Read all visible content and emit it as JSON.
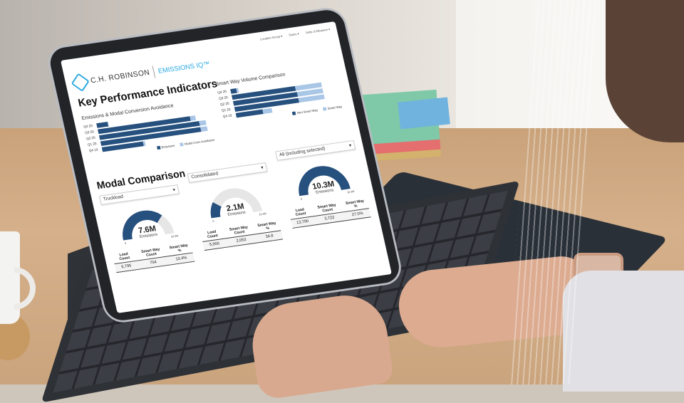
{
  "topnav": [
    "Location Group ▾",
    "Dates ▾",
    "Units of Measure ▾"
  ],
  "brand": {
    "company": "C.H. ROBINSON",
    "product": "EMISSIONS IQ™"
  },
  "kpi": {
    "title": "Key Performance Indicators"
  },
  "modal": {
    "title": "Modal Comparison"
  },
  "colors": {
    "primary": "#26507e",
    "secondary": "#a9c6e6",
    "brand_blue": "#29a8e0"
  },
  "chart_data": [
    {
      "type": "bar",
      "orientation": "horizontal",
      "stacked": true,
      "title": "Emissions & Modal Conversion Avoidance",
      "categories": [
        "Q4 20",
        "Q3 20",
        "Q2 20",
        "Q1 20",
        "Q4 19"
      ],
      "series": [
        {
          "name": "Emissions",
          "values": [
            10,
            85,
            92,
            92,
            38
          ]
        },
        {
          "name": "Modal Conv Avoidance",
          "values": [
            0.5,
            5,
            6,
            6,
            2
          ]
        }
      ],
      "legend": "bottom-right"
    },
    {
      "type": "bar",
      "orientation": "horizontal",
      "stacked": true,
      "title": "Smart Way Volume Comparison",
      "categories": [
        "Q4 20",
        "Q3 20",
        "Q2 20",
        "Q1 20",
        "Q4 19"
      ],
      "series": [
        {
          "name": "Non Smart Way",
          "values": [
            6,
            62,
            63,
            63,
            26
          ]
        },
        {
          "name": "Smart Way",
          "values": [
            2,
            26,
            25,
            25,
            9
          ]
        }
      ],
      "legend": "bottom-right"
    }
  ],
  "gauges": [
    {
      "select": "Truckload",
      "value": "7.6M",
      "fraction": 0.74,
      "label": "Emissions",
      "min": "0",
      "max": "10.3M",
      "headers": [
        "Load Count",
        "Smart Way Count",
        "Smart Way %"
      ],
      "row": [
        "6,795",
        "704",
        "10.4%"
      ]
    },
    {
      "select": "Consolidated",
      "value": "2.1M",
      "fraction": 0.2,
      "label": "Emissions",
      "min": "0",
      "max": "10.3M",
      "headers": [
        "Load Count",
        "Smart Way Count",
        "Smart Way %"
      ],
      "row": [
        "5,900",
        "2,053",
        "34.8"
      ]
    },
    {
      "select": "All (including selected)",
      "value": "10.3M",
      "fraction": 1.0,
      "label": "Emissions",
      "min": "0",
      "max": "10.3M",
      "headers": [
        "Load Count",
        "Smart Way Count",
        "Smart Way %"
      ],
      "row": [
        "13,790",
        "3,722",
        "27.0%"
      ]
    }
  ]
}
